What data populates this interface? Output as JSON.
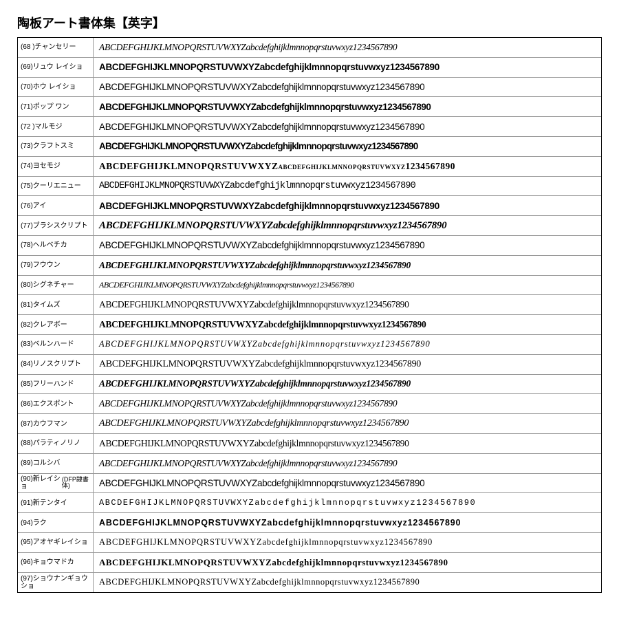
{
  "title": "陶板アート書体集【英字】",
  "sample_text": "ABCDEFGHIJKLMNOPQRSTUVWXYZabcdefghijklmnnopqrstuvwxyz1234567890",
  "fonts": [
    {
      "num": "(68 )",
      "name": "チャンセリー",
      "css": "s-italic-serif"
    },
    {
      "num": "(69)",
      "name": "リュウ レイショ",
      "css": "s-bold-sans"
    },
    {
      "num": "(70)",
      "name": "ホウ レイショ",
      "css": "s-sans"
    },
    {
      "num": "(71)",
      "name": "ポップ ワン",
      "css": "s-bold-round"
    },
    {
      "num": "(72 )",
      "name": "マルモジ",
      "css": "s-round"
    },
    {
      "num": "(73)",
      "name": "クラフトスミ",
      "css": "s-craft"
    },
    {
      "num": "(74)",
      "name": "ヨセモジ",
      "css": "s-serif-sc"
    },
    {
      "num": "(75)",
      "name": "クーリエニュー",
      "css": "s-courier"
    },
    {
      "num": "(76)",
      "name": "アイ",
      "css": "s-heavy-sans"
    },
    {
      "num": "(77)",
      "name": "ブラシスクリプト",
      "css": "s-brush"
    },
    {
      "num": "(78)",
      "name": "ヘルベチカ",
      "css": "s-helvetica"
    },
    {
      "num": "(79)",
      "name": "フウウン",
      "css": "s-bold-italic-serif"
    },
    {
      "num": "(80)",
      "name": "シグネチャー",
      "css": "s-script-thin"
    },
    {
      "num": "(81)",
      "name": "タイムズ",
      "css": "s-times"
    },
    {
      "num": "(82)",
      "name": "クレアボー",
      "css": "s-blackletter"
    },
    {
      "num": "(83)",
      "name": "ベルンハード",
      "css": "s-light-serif-italic"
    },
    {
      "num": "(84)",
      "name": "リノスクリプト",
      "css": "s-lino"
    },
    {
      "num": "(85)",
      "name": "フリーハンド",
      "css": "s-freehand"
    },
    {
      "num": "(86)",
      "name": "エクスポント",
      "css": "s-expont"
    },
    {
      "num": "(87)",
      "name": "カウフマン",
      "css": "s-kaufmann"
    },
    {
      "num": "(88)",
      "name": "パラティノリノ",
      "css": "s-palatino"
    },
    {
      "num": "(89)",
      "name": "コルシバ",
      "css": "s-corsiva"
    },
    {
      "num": "(90)",
      "name": "新レイショ\n(DFP隷書体)",
      "css": "s-reisho"
    },
    {
      "num": "(91)",
      "name": "新テンタイ",
      "css": "s-tentai"
    },
    {
      "num": "(94)",
      "name": "ラク",
      "css": "s-raku"
    },
    {
      "num": "(95)",
      "name": "アオヤギレイショ",
      "css": "s-aoyagi"
    },
    {
      "num": "(96)",
      "name": "キョウマドカ",
      "css": "s-kyomadoka"
    },
    {
      "num": "(97)",
      "name": "ショウナンギョウショ",
      "css": "s-shonan"
    }
  ],
  "colors": {
    "background": "#ffffff",
    "text": "#000000",
    "border": "#000000",
    "row_border": "#999999"
  }
}
